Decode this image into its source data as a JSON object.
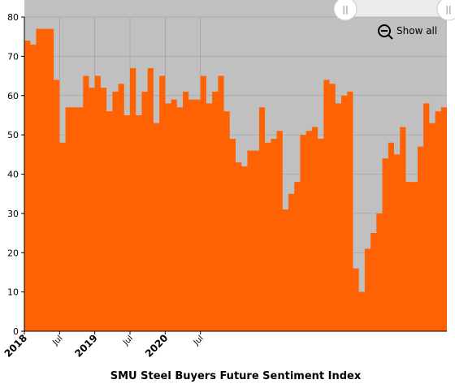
{
  "chart_data": {
    "type": "area",
    "step": true,
    "title": "SMU Steel Buyers Future Sentiment Index",
    "x_start": "2018-01",
    "x_end": "2020-11",
    "ylim": [
      0,
      80
    ],
    "y_ticks": [
      0,
      10,
      20,
      30,
      40,
      50,
      60,
      70,
      80
    ],
    "x_ticks": [
      {
        "label": "2018",
        "major": true
      },
      {
        "label": "Jul",
        "major": false
      },
      {
        "label": "2019",
        "major": true
      },
      {
        "label": "Jul",
        "major": false
      },
      {
        "label": "2020",
        "major": true
      },
      {
        "label": "Jul",
        "major": false
      }
    ],
    "grid": true,
    "series": [
      {
        "values": [
          74,
          73,
          77,
          77,
          77,
          64,
          48,
          57,
          57,
          57,
          65,
          62,
          65,
          62,
          56,
          61,
          63,
          55,
          67,
          55,
          61,
          67,
          53,
          65,
          58,
          59,
          57,
          61,
          59,
          59,
          65,
          58,
          61,
          65,
          56,
          49,
          43,
          42,
          46,
          46,
          57,
          48,
          49,
          51,
          31,
          35,
          38,
          50,
          51,
          52,
          49,
          64,
          63,
          58,
          60,
          61,
          16,
          10,
          21,
          25,
          30,
          44,
          48,
          45,
          52,
          38,
          38,
          47,
          58,
          53,
          56,
          57
        ]
      }
    ],
    "colors": {
      "area": "#FF6205",
      "plot_background": "#C0C0C0",
      "gridline": "#999999",
      "navigator": "#EBEBEB"
    },
    "controls": {
      "reset_zoom_label": "Show all",
      "handle_glyph": "||"
    }
  }
}
